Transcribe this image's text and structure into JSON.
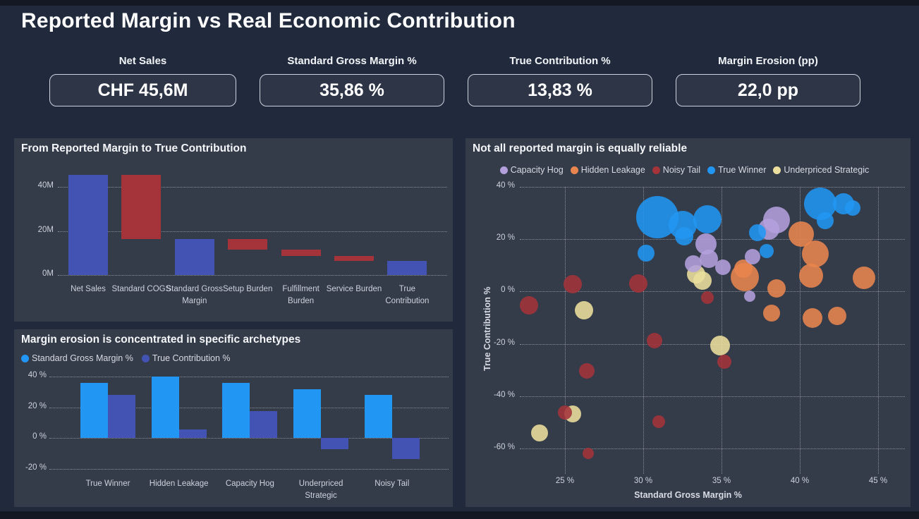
{
  "page": {
    "title": "Reported Margin vs Real Economic Contribution"
  },
  "kpis": [
    {
      "label": "Net Sales",
      "value": "CHF 45,6M"
    },
    {
      "label": "Standard Gross Margin %",
      "value": "35,86 %"
    },
    {
      "label": "True Contribution %",
      "value": "13,83 %"
    },
    {
      "label": "Margin Erosion (pp)",
      "value": "22,0 pp"
    }
  ],
  "colors": {
    "page_bg": "#212a3c",
    "panel_bg": "#343b49",
    "waterfall_total_blue": "#4253b4",
    "waterfall_decrease_red": "#a4333a",
    "bar_sgm_blue": "#2196f3",
    "bar_tc_indigo": "#4253b4",
    "scatter": {
      "Capacity Hog": "#b39fdc",
      "Hidden Leakage": "#e9854f",
      "Noisy Tail": "#a4333a",
      "True Winner": "#2196f3",
      "Underpriced Strategic": "#ecdf9d"
    }
  },
  "chart_data": [
    {
      "type": "waterfall",
      "title": "From Reported Margin to True Contribution",
      "ylabel": "",
      "xlabel": "",
      "ylim": [
        0,
        48
      ],
      "yticks": [
        {
          "v": 0,
          "label": "0M"
        },
        {
          "v": 20,
          "label": "20M"
        },
        {
          "v": 40,
          "label": "40M"
        }
      ],
      "items": [
        {
          "label": "Net Sales",
          "from": 0,
          "to": 45.6,
          "role": "total"
        },
        {
          "label": "Standard COGS",
          "from": 45.6,
          "to": 16.35,
          "role": "decrease"
        },
        {
          "label": "Standard Gross Margin",
          "from": 0,
          "to": 16.35,
          "role": "total"
        },
        {
          "label": "Setup Burden",
          "from": 16.35,
          "to": 11.45,
          "role": "decrease"
        },
        {
          "label": "Fulfillment Burden",
          "from": 11.45,
          "to": 8.55,
          "role": "decrease"
        },
        {
          "label": "Service Burden",
          "from": 8.55,
          "to": 6.31,
          "role": "decrease"
        },
        {
          "label": "True Contribution",
          "from": 0,
          "to": 6.31,
          "role": "total"
        }
      ]
    },
    {
      "type": "bar",
      "title": "Margin erosion is concentrated in specific archetypes",
      "categories": [
        "True Winner",
        "Hidden Leakage",
        "Capacity Hog",
        "Underpriced Strategic",
        "Noisy Tail"
      ],
      "series": [
        {
          "name": "Standard Gross Margin %",
          "values": [
            36,
            40,
            36,
            31.5,
            28
          ]
        },
        {
          "name": "True Contribution %",
          "values": [
            28,
            5.3,
            17.4,
            -7.4,
            -14
          ]
        }
      ],
      "ylim": [
        -22,
        42
      ],
      "yticks": [
        {
          "v": 40,
          "label": "40 %"
        },
        {
          "v": 20,
          "label": "20 %"
        },
        {
          "v": 0,
          "label": "0 %"
        },
        {
          "v": -20,
          "label": "-20 %"
        }
      ],
      "legend_position": "top-left",
      "grid": true
    },
    {
      "type": "scatter",
      "title": "Not all reported margin is equally reliable",
      "xlabel": "Standard Gross Margin %",
      "ylabel": "True Contribution %",
      "xlim": [
        22,
        46.5
      ],
      "ylim": [
        -65,
        42
      ],
      "xticks": [
        {
          "v": 25,
          "label": "25 %"
        },
        {
          "v": 30,
          "label": "30 %"
        },
        {
          "v": 35,
          "label": "35 %"
        },
        {
          "v": 40,
          "label": "40 %"
        },
        {
          "v": 45,
          "label": "45 %"
        }
      ],
      "yticks": [
        {
          "v": 40,
          "label": "40 %"
        },
        {
          "v": 20,
          "label": "20 %"
        },
        {
          "v": 0,
          "label": "0 %"
        },
        {
          "v": -20,
          "label": "-20 %"
        },
        {
          "v": -40,
          "label": "-40 %"
        },
        {
          "v": -60,
          "label": "-60 %"
        }
      ],
      "legend": [
        "Capacity Hog",
        "Hidden Leakage",
        "Noisy Tail",
        "True Winner",
        "Underpriced Strategic"
      ],
      "legend_position": "top-center",
      "grid": true,
      "points": [
        {
          "x": 30.9,
          "y": 28.4,
          "r": 30,
          "c": "True Winner"
        },
        {
          "x": 32.5,
          "y": 25.3,
          "r": 20,
          "c": "True Winner"
        },
        {
          "x": 34.1,
          "y": 27.6,
          "r": 20,
          "c": "True Winner"
        },
        {
          "x": 32.6,
          "y": 21.0,
          "r": 13,
          "c": "True Winner"
        },
        {
          "x": 30.2,
          "y": 14.6,
          "r": 12,
          "c": "True Winner"
        },
        {
          "x": 37.3,
          "y": 22.5,
          "r": 12,
          "c": "True Winner"
        },
        {
          "x": 37.9,
          "y": 15.5,
          "r": 10,
          "c": "True Winner"
        },
        {
          "x": 41.3,
          "y": 33.6,
          "r": 23,
          "c": "True Winner"
        },
        {
          "x": 42.8,
          "y": 33.4,
          "r": 15,
          "c": "True Winner"
        },
        {
          "x": 41.6,
          "y": 27.0,
          "r": 12,
          "c": "True Winner"
        },
        {
          "x": 43.4,
          "y": 32.0,
          "r": 11,
          "c": "True Winner"
        },
        {
          "x": 34.0,
          "y": 18.1,
          "r": 15,
          "c": "Capacity Hog"
        },
        {
          "x": 34.2,
          "y": 12.5,
          "r": 13,
          "c": "Capacity Hog"
        },
        {
          "x": 33.2,
          "y": 10.7,
          "r": 12,
          "c": "Capacity Hog"
        },
        {
          "x": 35.1,
          "y": 9.3,
          "r": 11,
          "c": "Capacity Hog"
        },
        {
          "x": 38.5,
          "y": 27.4,
          "r": 19,
          "c": "Capacity Hog"
        },
        {
          "x": 38.0,
          "y": 23.8,
          "r": 15,
          "c": "Capacity Hog"
        },
        {
          "x": 37.0,
          "y": 13.4,
          "r": 11,
          "c": "Capacity Hog"
        },
        {
          "x": 36.8,
          "y": -1.9,
          "r": 8,
          "c": "Capacity Hog"
        },
        {
          "x": 36.4,
          "y": 8.7,
          "r": 13,
          "c": "Hidden Leakage"
        },
        {
          "x": 36.5,
          "y": 5.5,
          "r": 20,
          "c": "Hidden Leakage"
        },
        {
          "x": 40.1,
          "y": 22.0,
          "r": 18,
          "c": "Hidden Leakage"
        },
        {
          "x": 41.0,
          "y": 14.5,
          "r": 19,
          "c": "Hidden Leakage"
        },
        {
          "x": 40.7,
          "y": 6.0,
          "r": 17,
          "c": "Hidden Leakage"
        },
        {
          "x": 44.1,
          "y": 5.3,
          "r": 16,
          "c": "Hidden Leakage"
        },
        {
          "x": 38.5,
          "y": 1.2,
          "r": 13,
          "c": "Hidden Leakage"
        },
        {
          "x": 38.2,
          "y": -8.2,
          "r": 12,
          "c": "Hidden Leakage"
        },
        {
          "x": 40.8,
          "y": -10.2,
          "r": 14,
          "c": "Hidden Leakage"
        },
        {
          "x": 42.4,
          "y": -9.3,
          "r": 13,
          "c": "Hidden Leakage"
        },
        {
          "x": 25.5,
          "y": 2.8,
          "r": 13,
          "c": "Noisy Tail"
        },
        {
          "x": 29.7,
          "y": 3.1,
          "r": 13,
          "c": "Noisy Tail"
        },
        {
          "x": 22.7,
          "y": -5.4,
          "r": 13,
          "c": "Noisy Tail"
        },
        {
          "x": 34.1,
          "y": -2.4,
          "r": 9,
          "c": "Noisy Tail"
        },
        {
          "x": 30.7,
          "y": -18.8,
          "r": 11,
          "c": "Noisy Tail"
        },
        {
          "x": 35.2,
          "y": -26.8,
          "r": 10,
          "c": "Noisy Tail"
        },
        {
          "x": 26.4,
          "y": -30.4,
          "r": 11,
          "c": "Noisy Tail"
        },
        {
          "x": 25.0,
          "y": -46.4,
          "r": 10,
          "c": "Noisy Tail"
        },
        {
          "x": 31.0,
          "y": -49.7,
          "r": 9,
          "c": "Noisy Tail"
        },
        {
          "x": 26.5,
          "y": -62.0,
          "r": 8,
          "c": "Noisy Tail"
        },
        {
          "x": 33.4,
          "y": 6.6,
          "r": 13,
          "c": "Underpriced Strategic"
        },
        {
          "x": 33.8,
          "y": 4.0,
          "r": 13,
          "c": "Underpriced Strategic"
        },
        {
          "x": 26.2,
          "y": -7.1,
          "r": 13,
          "c": "Underpriced Strategic"
        },
        {
          "x": 34.9,
          "y": -20.6,
          "r": 14,
          "c": "Underpriced Strategic"
        },
        {
          "x": 25.5,
          "y": -46.7,
          "r": 12,
          "c": "Underpriced Strategic"
        },
        {
          "x": 23.4,
          "y": -54.2,
          "r": 12,
          "c": "Underpriced Strategic"
        }
      ]
    }
  ]
}
